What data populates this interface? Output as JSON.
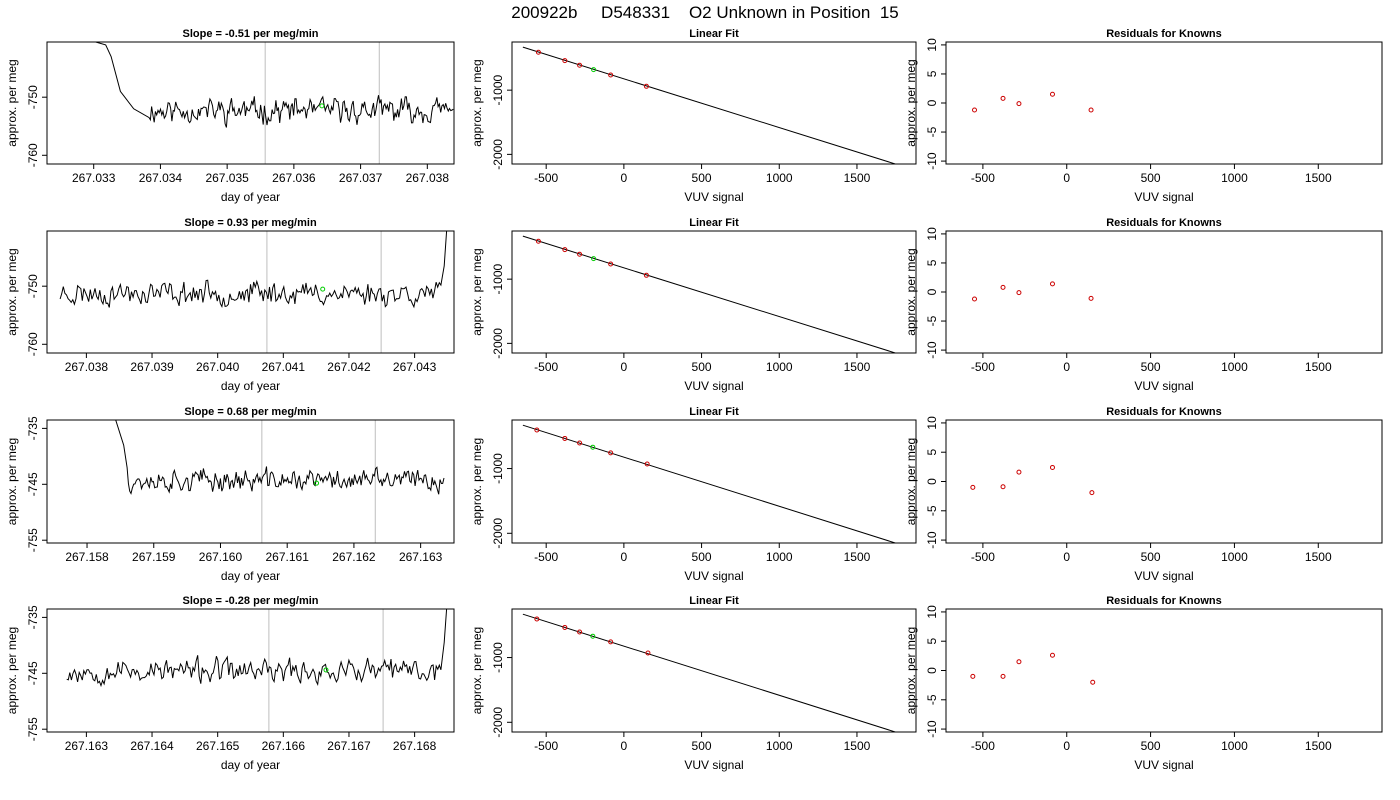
{
  "figure": {
    "title": "200922b     D548331    O2 Unknown in Position  15"
  },
  "colors": {
    "line": "#000000",
    "known": "#cc0000",
    "unknown": "#00cc00",
    "marker": "#bebebe"
  },
  "chart_data": [
    {
      "type": "line",
      "panel": "time",
      "title": "Slope =  -0.51  per meg/min",
      "xlabel": "day of year",
      "ylabel": "approx. per meg",
      "xlim": [
        267.0323,
        267.0384
      ],
      "ylim": [
        -761.5,
        -740.5
      ],
      "xticks": [
        267.033,
        267.034,
        267.035,
        267.036,
        267.037,
        267.038
      ],
      "yticks": [
        -760,
        -750
      ],
      "vlines": [
        267.03557,
        267.03728
      ],
      "unknown_point": {
        "x": 267.03642,
        "y": -751.5
      },
      "series": {
        "t0": 267.03383,
        "t1": 267.03839,
        "start": [
          [
            267.03303,
            -740.5
          ],
          [
            267.03318,
            -741
          ],
          [
            267.03326,
            -743
          ],
          [
            267.0334,
            -749
          ],
          [
            267.0336,
            -752
          ]
        ],
        "mean": -752.3,
        "amp": 2.5,
        "seed": 11
      }
    },
    {
      "type": "line",
      "panel": "linfit",
      "title": "Linear Fit",
      "xlabel": "VUV signal",
      "ylabel": "approx. per meg",
      "xlim": [
        -720,
        1880
      ],
      "ylim": [
        -2150,
        -250
      ],
      "xticks": [
        -500,
        0,
        500,
        1000,
        1500
      ],
      "yticks": [
        -1000,
        -2000
      ],
      "fit_line": [
        [
          -650,
          -330
        ],
        [
          1780,
          -2175
        ]
      ],
      "known_points": [
        {
          "x": -550,
          "y": -410
        },
        {
          "x": -380,
          "y": -540
        },
        {
          "x": -285,
          "y": -612
        },
        {
          "x": -85,
          "y": -764
        },
        {
          "x": 145,
          "y": -940
        }
      ],
      "unknown_point": {
        "x": -195,
        "y": -680
      }
    },
    {
      "type": "scatter",
      "panel": "resid",
      "title": "Residuals for Knowns",
      "xlabel": "VUV signal",
      "ylabel": "approx. per meg",
      "xlim": [
        -720,
        1880
      ],
      "ylim": [
        -10.5,
        10.5
      ],
      "xticks": [
        -500,
        0,
        500,
        1000,
        1500
      ],
      "yticks": [
        10,
        5,
        0,
        -5,
        -10
      ],
      "points": [
        {
          "x": -550,
          "y": -1.2
        },
        {
          "x": -380,
          "y": 0.8
        },
        {
          "x": -285,
          "y": -0.1
        },
        {
          "x": -85,
          "y": 1.5
        },
        {
          "x": 145,
          "y": -1.2
        }
      ]
    },
    {
      "type": "line",
      "panel": "time",
      "title": "Slope =  0.93  per meg/min",
      "xlabel": "day of year",
      "ylabel": "approx. per meg",
      "xlim": [
        267.0374,
        267.0436
      ],
      "ylim": [
        -761.5,
        -740.5
      ],
      "xticks": [
        267.038,
        267.039,
        267.04,
        267.041,
        267.042,
        267.043
      ],
      "yticks": [
        -760,
        -750
      ],
      "vlines": [
        267.04075,
        267.04249
      ],
      "unknown_point": {
        "x": 267.0416,
        "y": -750.5
      },
      "series": {
        "t0": 267.0376,
        "t1": 267.0434,
        "start": [],
        "mean": -751.2,
        "amp": 2.4,
        "seed": 23
      }
    },
    {
      "type": "line",
      "panel": "linfit",
      "title": "Linear Fit",
      "xlabel": "VUV signal",
      "ylabel": "approx. per meg",
      "xlim": [
        -720,
        1880
      ],
      "ylim": [
        -2150,
        -250
      ],
      "xticks": [
        -500,
        0,
        500,
        1000,
        1500
      ],
      "yticks": [
        -1000,
        -2000
      ],
      "fit_line": [
        [
          -650,
          -330
        ],
        [
          1780,
          -2175
        ]
      ],
      "known_points": [
        {
          "x": -550,
          "y": -410
        },
        {
          "x": -380,
          "y": -540
        },
        {
          "x": -285,
          "y": -612
        },
        {
          "x": -85,
          "y": -764
        },
        {
          "x": 145,
          "y": -940
        }
      ],
      "unknown_point": {
        "x": -195,
        "y": -680
      }
    },
    {
      "type": "scatter",
      "panel": "resid",
      "title": "Residuals for Knowns",
      "xlabel": "VUV signal",
      "ylabel": "approx. per meg",
      "xlim": [
        -720,
        1880
      ],
      "ylim": [
        -10.5,
        10.5
      ],
      "xticks": [
        -500,
        0,
        500,
        1000,
        1500
      ],
      "yticks": [
        10,
        5,
        0,
        -5,
        -10
      ],
      "points": [
        {
          "x": -550,
          "y": -1.2
        },
        {
          "x": -380,
          "y": 0.8
        },
        {
          "x": -285,
          "y": -0.1
        },
        {
          "x": -85,
          "y": 1.4
        },
        {
          "x": 145,
          "y": -1.1
        }
      ]
    },
    {
      "type": "line",
      "panel": "time",
      "title": "Slope =  0.68  per meg/min",
      "xlabel": "day of year",
      "ylabel": "approx. per meg",
      "xlim": [
        267.1574,
        267.1635
      ],
      "ylim": [
        -755.5,
        -733.5
      ],
      "xticks": [
        267.158,
        267.159,
        267.16,
        267.161,
        267.162,
        267.163
      ],
      "yticks": [
        -735,
        -745,
        -755
      ],
      "vlines": [
        267.16062,
        267.16232
      ],
      "unknown_point": {
        "x": 267.16144,
        "y": -744.8
      },
      "series": {
        "t0": 267.15862,
        "t1": 267.16335,
        "start": [
          [
            267.15843,
            -733.5
          ],
          [
            267.15855,
            -738
          ],
          [
            267.1586,
            -742
          ]
        ],
        "mean": -744.3,
        "amp": 2.3,
        "seed": 37
      }
    },
    {
      "type": "line",
      "panel": "linfit",
      "title": "Linear Fit",
      "xlabel": "VUV signal",
      "ylabel": "approx. per meg",
      "xlim": [
        -720,
        1880
      ],
      "ylim": [
        -2150,
        -250
      ],
      "xticks": [
        -500,
        0,
        500,
        1000,
        1500
      ],
      "yticks": [
        -1000,
        -2000
      ],
      "fit_line": [
        [
          -650,
          -330
        ],
        [
          1780,
          -2175
        ]
      ],
      "known_points": [
        {
          "x": -560,
          "y": -405
        },
        {
          "x": -380,
          "y": -535
        },
        {
          "x": -285,
          "y": -605
        },
        {
          "x": -85,
          "y": -758
        },
        {
          "x": 150,
          "y": -930
        }
      ],
      "unknown_point": {
        "x": -200,
        "y": -670
      }
    },
    {
      "type": "scatter",
      "panel": "resid",
      "title": "Residuals for Knowns",
      "xlabel": "VUV signal",
      "ylabel": "approx. per meg",
      "xlim": [
        -720,
        1880
      ],
      "ylim": [
        -10.5,
        10.5
      ],
      "xticks": [
        -500,
        0,
        500,
        1000,
        1500
      ],
      "yticks": [
        10,
        5,
        0,
        -5,
        -10
      ],
      "points": [
        {
          "x": -560,
          "y": -1.0
        },
        {
          "x": -380,
          "y": -0.9
        },
        {
          "x": -285,
          "y": 1.6
        },
        {
          "x": -85,
          "y": 2.4
        },
        {
          "x": 150,
          "y": -1.9
        }
      ]
    },
    {
      "type": "line",
      "panel": "time",
      "title": "Slope =  -0.28  per meg/min",
      "xlabel": "day of year",
      "ylabel": "approx. per meg",
      "xlim": [
        267.1624,
        267.1686
      ],
      "ylim": [
        -755.5,
        -733.5
      ],
      "xticks": [
        267.163,
        267.164,
        267.165,
        267.166,
        267.167,
        267.168
      ],
      "yticks": [
        -735,
        -745,
        -755
      ],
      "vlines": [
        267.16578,
        267.16752
      ],
      "unknown_point": {
        "x": 267.16665,
        "y": -744.4
      },
      "series": {
        "t0": 267.1627,
        "t1": 267.1684,
        "start": [],
        "mean": -744.6,
        "amp": 2.5,
        "seed": 53
      }
    },
    {
      "type": "line",
      "panel": "linfit",
      "title": "Linear Fit",
      "xlabel": "VUV signal",
      "ylabel": "approx. per meg",
      "xlim": [
        -720,
        1880
      ],
      "ylim": [
        -2150,
        -250
      ],
      "xticks": [
        -500,
        0,
        500,
        1000,
        1500
      ],
      "yticks": [
        -1000,
        -2000
      ],
      "fit_line": [
        [
          -650,
          -330
        ],
        [
          1780,
          -2175
        ]
      ],
      "known_points": [
        {
          "x": -560,
          "y": -405
        },
        {
          "x": -380,
          "y": -535
        },
        {
          "x": -285,
          "y": -605
        },
        {
          "x": -85,
          "y": -758
        },
        {
          "x": 155,
          "y": -930
        }
      ],
      "unknown_point": {
        "x": -200,
        "y": -670
      }
    },
    {
      "type": "scatter",
      "panel": "resid",
      "title": "Residuals for Knowns",
      "xlabel": "VUV signal",
      "ylabel": "approx. per meg",
      "xlim": [
        -720,
        1880
      ],
      "ylim": [
        -10.5,
        10.5
      ],
      "xticks": [
        -500,
        0,
        500,
        1000,
        1500
      ],
      "yticks": [
        10,
        5,
        0,
        -5,
        -10
      ],
      "points": [
        {
          "x": -560,
          "y": -1.0
        },
        {
          "x": -380,
          "y": -1.0
        },
        {
          "x": -285,
          "y": 1.5
        },
        {
          "x": -85,
          "y": 2.6
        },
        {
          "x": 155,
          "y": -2.0
        }
      ]
    }
  ]
}
